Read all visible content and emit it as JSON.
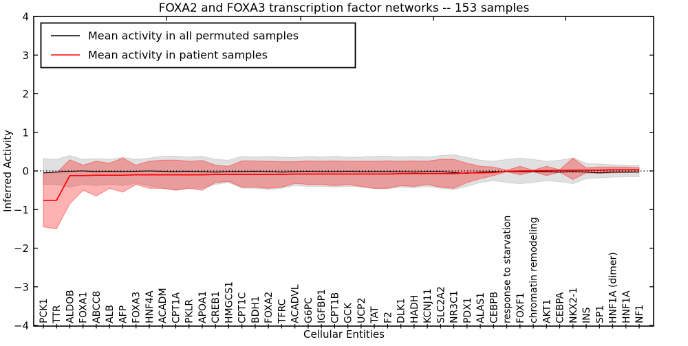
{
  "title": "FOXA2 and FOXA3 transcription factor networks -- 153 samples",
  "axes": {
    "xlabel": "Cellular Entities",
    "ylabel": "Inferred Activity",
    "ylim": [
      -4,
      4
    ],
    "yticks": [
      4,
      3,
      2,
      1,
      0,
      -1,
      -2,
      -3,
      -4
    ]
  },
  "legend": {
    "items": [
      {
        "label": "Mean activity in all permuted samples",
        "color": "#000000"
      },
      {
        "label": "Mean activity in patient samples",
        "color": "#ff0000"
      }
    ]
  },
  "chart_data": {
    "type": "line",
    "title": "FOXA2 and FOXA3 transcription factor networks -- 153 samples",
    "xlabel": "Cellular Entities",
    "ylabel": "Inferred Activity",
    "ylim": [
      -4,
      4
    ],
    "grid": false,
    "legend_position": "upper left",
    "categories": [
      "PCK1",
      "TTR",
      "ALDOB",
      "FOXA1",
      "ABCC8",
      "ALB",
      "AFP",
      "FOXA3",
      "HNF4A",
      "ACADM",
      "CPT1A",
      "PKLR",
      "APOA1",
      "CREB1",
      "HMGCS1",
      "CPT1C",
      "BDH1",
      "FOXA2",
      "TFRC",
      "ACADVL",
      "G6PC",
      "IGFBP1",
      "CPT1B",
      "GCK",
      "UCP2",
      "TAT",
      "F2",
      "DLK1",
      "HADH",
      "KCNJ11",
      "SLC2A2",
      "NR3C1",
      "PDX1",
      "ALAS1",
      "CEBPB",
      "response to starvation",
      "FOXF1",
      "chromatin remodeling",
      "AKT1",
      "CEBPA",
      "NKX2-1",
      "INS",
      "SP1",
      "HNF1A (dimer)",
      "HNF1A",
      "NF1"
    ],
    "series": [
      {
        "name": "Mean activity in all permuted samples",
        "color": "#000000",
        "values": [
          -0.05,
          -0.03,
          -0.01,
          0.0,
          -0.02,
          -0.01,
          -0.02,
          -0.01,
          0.0,
          -0.01,
          -0.02,
          -0.01,
          -0.02,
          -0.03,
          -0.02,
          -0.02,
          -0.01,
          -0.02,
          -0.03,
          -0.02,
          -0.01,
          -0.02,
          -0.02,
          -0.01,
          -0.02,
          -0.02,
          -0.02,
          -0.02,
          -0.03,
          -0.02,
          -0.02,
          -0.04,
          -0.06,
          -0.03,
          -0.02,
          -0.02,
          -0.02,
          -0.02,
          -0.02,
          -0.03,
          -0.02,
          -0.03,
          -0.05,
          -0.03,
          -0.03,
          -0.03
        ]
      },
      {
        "name": "Mean activity in patient samples",
        "color": "#ff0000",
        "values": [
          -0.76,
          -0.76,
          -0.12,
          -0.12,
          -0.11,
          -0.11,
          -0.11,
          -0.1,
          -0.1,
          -0.1,
          -0.1,
          -0.1,
          -0.1,
          -0.09,
          -0.09,
          -0.09,
          -0.09,
          -0.09,
          -0.09,
          -0.08,
          -0.08,
          -0.08,
          -0.08,
          -0.08,
          -0.08,
          -0.08,
          -0.08,
          -0.07,
          -0.07,
          -0.07,
          -0.07,
          -0.07,
          -0.05,
          -0.05,
          -0.04,
          -0.01,
          0.0,
          0.0,
          0.01,
          0.01,
          0.02,
          0.02,
          0.02,
          0.03,
          0.03,
          0.03
        ]
      }
    ],
    "bands": [
      {
        "name": "permuted samples std band",
        "fill": "#000000",
        "fill_opacity": 0.12,
        "upper": [
          0.32,
          0.3,
          0.4,
          0.3,
          0.32,
          0.3,
          0.35,
          0.3,
          0.33,
          0.38,
          0.38,
          0.36,
          0.38,
          0.3,
          0.28,
          0.38,
          0.36,
          0.38,
          0.36,
          0.35,
          0.38,
          0.36,
          0.38,
          0.36,
          0.36,
          0.38,
          0.38,
          0.36,
          0.38,
          0.36,
          0.4,
          0.42,
          0.35,
          0.28,
          0.25,
          0.3,
          0.33,
          0.3,
          0.25,
          0.28,
          0.34,
          0.2,
          0.18,
          0.16,
          0.15,
          0.15
        ],
        "lower": [
          -0.35,
          -0.35,
          -0.42,
          -0.35,
          -0.38,
          -0.35,
          -0.38,
          -0.32,
          -0.38,
          -0.45,
          -0.5,
          -0.45,
          -0.45,
          -0.35,
          -0.3,
          -0.45,
          -0.45,
          -0.48,
          -0.45,
          -0.38,
          -0.4,
          -0.4,
          -0.42,
          -0.4,
          -0.42,
          -0.46,
          -0.46,
          -0.42,
          -0.44,
          -0.4,
          -0.45,
          -0.48,
          -0.4,
          -0.3,
          -0.25,
          -0.3,
          -0.33,
          -0.3,
          -0.25,
          -0.28,
          -0.33,
          -0.2,
          -0.18,
          -0.16,
          -0.15,
          -0.15
        ]
      },
      {
        "name": "patient samples std band",
        "fill": "#ff0000",
        "fill_opacity": 0.3,
        "upper": [
          -0.05,
          -0.05,
          0.29,
          0.15,
          0.25,
          0.2,
          0.33,
          0.15,
          0.25,
          0.28,
          0.28,
          0.25,
          0.27,
          0.15,
          0.12,
          0.26,
          0.26,
          0.25,
          0.24,
          0.24,
          0.26,
          0.25,
          0.26,
          0.25,
          0.25,
          0.25,
          0.26,
          0.25,
          0.26,
          0.25,
          0.3,
          0.3,
          0.2,
          0.12,
          0.1,
          0.02,
          0.12,
          0.02,
          0.12,
          0.03,
          0.33,
          0.08,
          0.1,
          0.1,
          0.1,
          0.08
        ],
        "lower": [
          -1.45,
          -1.5,
          -0.85,
          -0.5,
          -0.65,
          -0.45,
          -0.55,
          -0.35,
          -0.45,
          -0.45,
          -0.5,
          -0.45,
          -0.5,
          -0.3,
          -0.27,
          -0.42,
          -0.42,
          -0.45,
          -0.42,
          -0.32,
          -0.35,
          -0.35,
          -0.38,
          -0.35,
          -0.4,
          -0.45,
          -0.45,
          -0.38,
          -0.4,
          -0.35,
          -0.42,
          -0.45,
          -0.3,
          -0.2,
          -0.12,
          -0.02,
          -0.1,
          -0.02,
          -0.12,
          -0.03,
          -0.22,
          -0.05,
          -0.06,
          -0.05,
          -0.04,
          -0.03
        ]
      }
    ],
    "reference_line": {
      "y": 0,
      "style": "dotted",
      "color": "#000000"
    },
    "layout_hints": {
      "top_ticks_x": [
        242,
        437,
        630,
        822
      ]
    }
  }
}
